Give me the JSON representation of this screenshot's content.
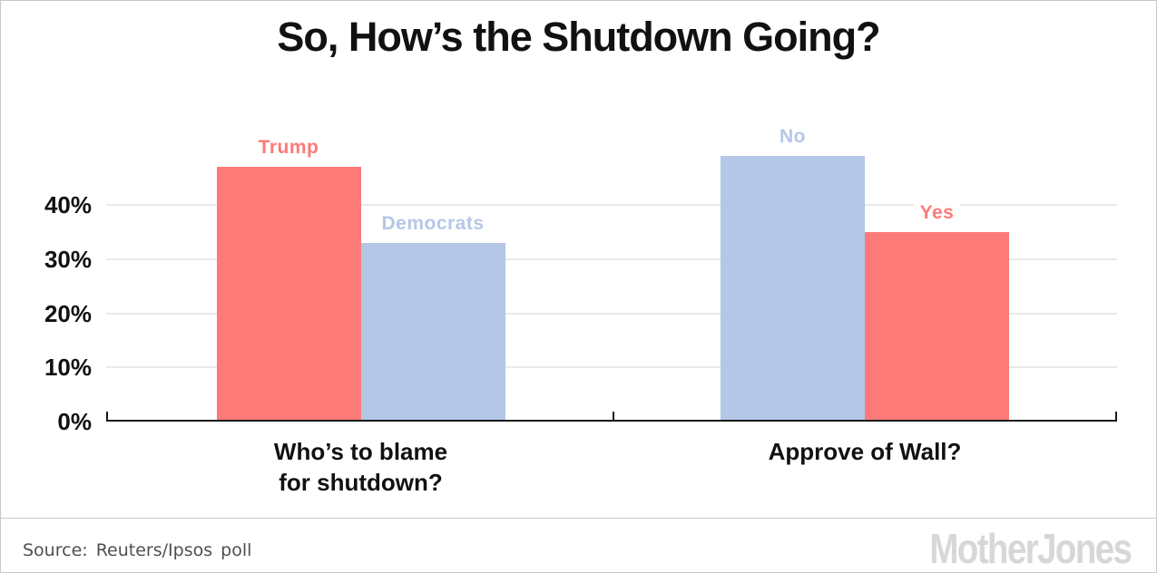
{
  "page": {
    "title": "So, How’s the Shutdown Going?",
    "source_text": "Source: Reuters/Ipsos poll",
    "logo_text": "MotherJones"
  },
  "colors": {
    "red": "#FC7B78",
    "blue": "#B4C7E7",
    "grid": "#E9E9E9",
    "axis": "#1A1A1A",
    "text": "#111111",
    "source_gray": "#4F4F4F",
    "logo_gray": "#D7D7D7"
  },
  "chart_data": {
    "type": "bar",
    "title": "So, How’s the Shutdown Going?",
    "xlabel": "",
    "ylabel": "",
    "unit": "percent",
    "ylim": [
      0,
      52
    ],
    "yticks": [
      0,
      10,
      20,
      30,
      40
    ],
    "ytick_suffix": "%",
    "grid": "horizontal",
    "legend": "none — bars labeled directly above",
    "groups": [
      {
        "category": "Who’s to blame\nfor shutdown?",
        "bars": [
          {
            "label": "Trump",
            "value": 47,
            "color": "red"
          },
          {
            "label": "Democrats",
            "value": 33,
            "color": "blue"
          }
        ]
      },
      {
        "category": "Approve of Wall?",
        "bars": [
          {
            "label": "No",
            "value": 49,
            "color": "blue"
          },
          {
            "label": "Yes",
            "value": 35,
            "color": "red"
          }
        ]
      }
    ]
  }
}
